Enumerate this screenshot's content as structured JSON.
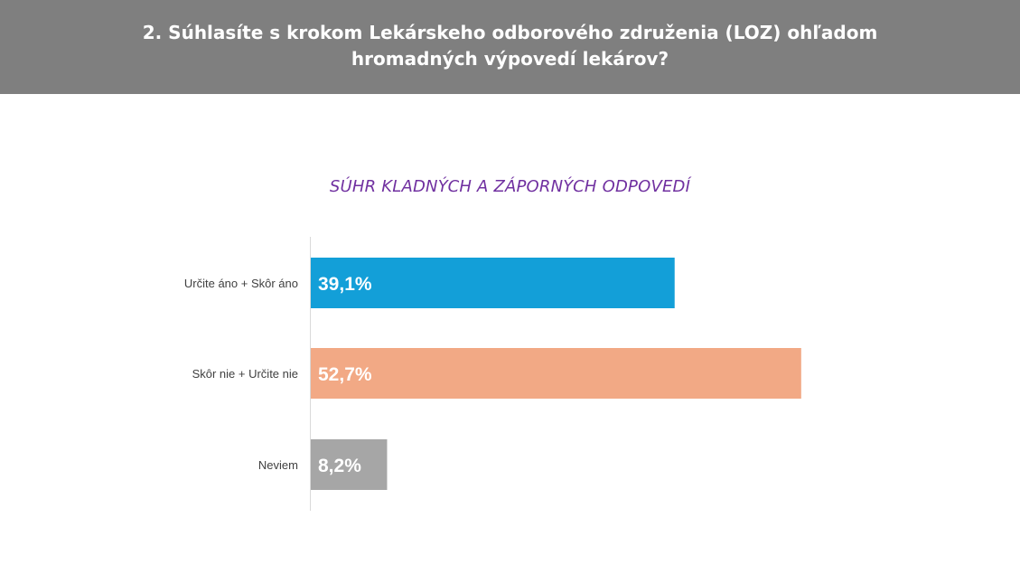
{
  "header": {
    "title": "2. Súhlasíte s krokom Lekárskeho odborového združenia (LOZ) ohľadom hromadných výpovedí lekárov?"
  },
  "chart_data": {
    "type": "bar",
    "orientation": "horizontal",
    "title": "SÚHR KLADNÝCH A ZÁPORNÝCH ODPOVEDÍ",
    "categories": [
      "Určite áno + Skôr áno",
      "Skôr nie + Určite nie",
      "Neviem"
    ],
    "values": [
      39.1,
      52.7,
      8.2
    ],
    "value_labels": [
      "39,1%",
      "52,7%",
      "8,2%"
    ],
    "colors": [
      "#139fd8",
      "#f2a985",
      "#a6a6a6"
    ],
    "xlim": [
      0,
      60
    ],
    "grid": false,
    "legend": "none"
  }
}
